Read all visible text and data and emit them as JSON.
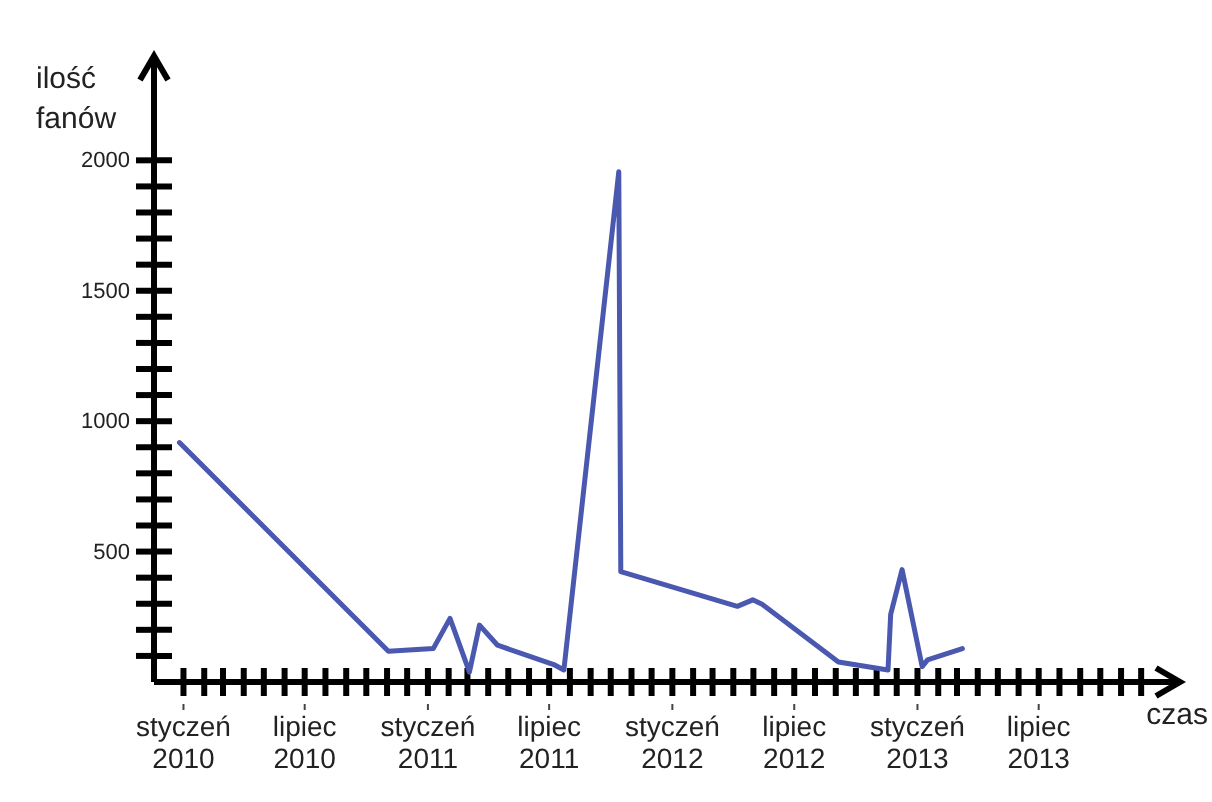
{
  "chart_data": {
    "type": "line",
    "xlabel": "czas",
    "ylabel": "ilość fanów",
    "xlim": [
      "2009-11-18",
      "2014-01-28"
    ],
    "ylim": [
      0,
      2400
    ],
    "xticks": [
      {
        "value": "2010-01",
        "label": "styczeń 2010"
      },
      {
        "value": "2010-02",
        "label": null
      },
      {
        "value": "2010-03",
        "label": null
      },
      {
        "value": "2010-04",
        "label": null
      },
      {
        "value": "2010-05",
        "label": null
      },
      {
        "value": "2010-06",
        "label": null
      },
      {
        "value": "2010-07",
        "label": "lipiec 2010"
      },
      {
        "value": "2010-08",
        "label": null
      },
      {
        "value": "2010-09",
        "label": null
      },
      {
        "value": "2010-10",
        "label": null
      },
      {
        "value": "2010-11",
        "label": null
      },
      {
        "value": "2010-12",
        "label": null
      },
      {
        "value": "2011-01",
        "label": "styczeń 2011"
      },
      {
        "value": "2011-02",
        "label": null
      },
      {
        "value": "2011-03",
        "label": null
      },
      {
        "value": "2011-04",
        "label": null
      },
      {
        "value": "2011-05",
        "label": null
      },
      {
        "value": "2011-06",
        "label": null
      },
      {
        "value": "2011-07",
        "label": "lipiec 2011"
      },
      {
        "value": "2011-08",
        "label": null
      },
      {
        "value": "2011-09",
        "label": null
      },
      {
        "value": "2011-10",
        "label": null
      },
      {
        "value": "2011-11",
        "label": null
      },
      {
        "value": "2011-12",
        "label": null
      },
      {
        "value": "2012-01",
        "label": "styczeń 2012"
      },
      {
        "value": "2012-02",
        "label": null
      },
      {
        "value": "2012-03",
        "label": null
      },
      {
        "value": "2012-04",
        "label": null
      },
      {
        "value": "2012-05",
        "label": null
      },
      {
        "value": "2012-06",
        "label": null
      },
      {
        "value": "2012-07",
        "label": "lipiec 2012"
      },
      {
        "value": "2012-08",
        "label": null
      },
      {
        "value": "2012-09",
        "label": null
      },
      {
        "value": "2012-10",
        "label": null
      },
      {
        "value": "2012-11",
        "label": null
      },
      {
        "value": "2012-12",
        "label": null
      },
      {
        "value": "2013-01",
        "label": "styczeń 2013"
      },
      {
        "value": "2013-02",
        "label": null
      },
      {
        "value": "2013-03",
        "label": null
      },
      {
        "value": "2013-04",
        "label": null
      },
      {
        "value": "2013-05",
        "label": null
      },
      {
        "value": "2013-06",
        "label": null
      },
      {
        "value": "2013-07",
        "label": "lipiec 2013"
      },
      {
        "value": "2013-08",
        "label": null
      },
      {
        "value": "2013-09",
        "label": null
      },
      {
        "value": "2013-10",
        "label": null
      },
      {
        "value": "2013-11",
        "label": null
      },
      {
        "value": "2013-12",
        "label": null
      }
    ],
    "yticks": [
      {
        "value": 100,
        "label": null
      },
      {
        "value": 200,
        "label": null
      },
      {
        "value": 300,
        "label": null
      },
      {
        "value": 400,
        "label": null
      },
      500,
      {
        "value": 600,
        "label": null
      },
      {
        "value": 700,
        "label": null
      },
      {
        "value": 800,
        "label": null
      },
      {
        "value": 900,
        "label": null
      },
      1000,
      {
        "value": 1100,
        "label": null
      },
      {
        "value": 1200,
        "label": null
      },
      {
        "value": 1300,
        "label": null
      },
      {
        "value": 1400,
        "label": null
      },
      1500,
      {
        "value": 1600,
        "label": null
      },
      {
        "value": 1700,
        "label": null
      },
      {
        "value": 1800,
        "label": null
      },
      {
        "value": 1900,
        "label": null
      },
      2000
    ],
    "grid": false,
    "marker": "none",
    "line_style": "solid",
    "x": [
      "2009-12-26",
      "2010-11-03",
      "2011-01-09",
      "2011-02-03",
      "2011-03-04",
      "2011-03-19",
      "2011-04-15",
      "2011-07-08",
      "2011-07-23",
      "2011-10-13",
      "2011-10-16",
      "2012-04-07",
      "2012-04-30",
      "2012-05-14",
      "2012-09-05",
      "2012-11-18",
      "2012-11-22",
      "2012-12-09",
      "2013-01-08",
      "2013-01-16",
      "2013-03-09"
    ],
    "series": [
      {
        "color": "#4a58b0",
        "values": [
          918,
          118,
          128,
          244,
          38,
          218,
          141,
          67,
          46,
          1956,
          423,
          290,
          315,
          298,
          77,
          46,
          259,
          431,
          59,
          85,
          128
        ]
      }
    ]
  }
}
